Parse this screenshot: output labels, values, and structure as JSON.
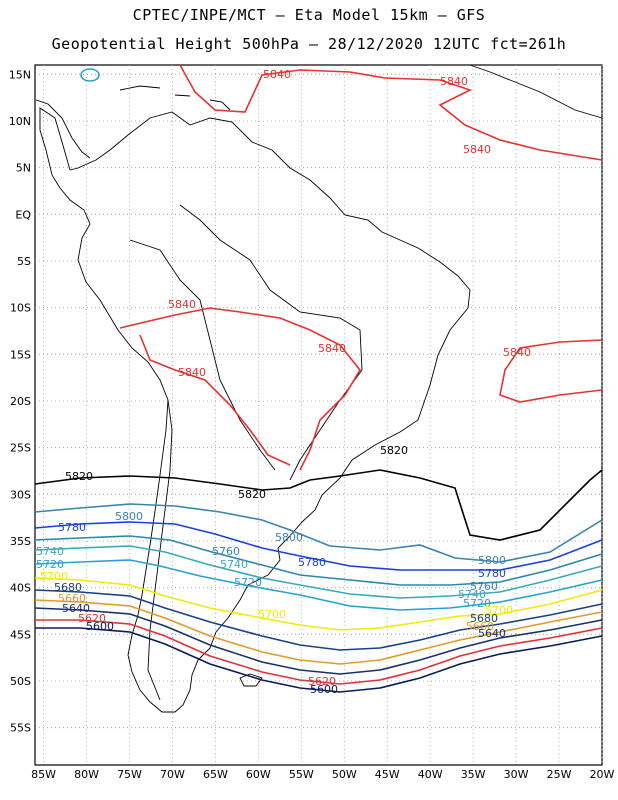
{
  "header": {
    "line1": "CPTEC/INPE/MCT –  Eta Model 15km – GFS",
    "line2": "Geopotential Height 500hPa – 28/12/2020 12UTC fct=261h"
  },
  "axes": {
    "lat_labels": [
      "15N",
      "10N",
      "5N",
      "EQ",
      "5S",
      "10S",
      "15S",
      "20S",
      "25S",
      "30S",
      "35S",
      "40S",
      "45S",
      "50S",
      "55S"
    ],
    "lat_values": [
      15,
      10,
      5,
      0,
      -5,
      -10,
      -15,
      -20,
      -25,
      -30,
      -35,
      -40,
      -45,
      -50,
      -55
    ],
    "lon_labels": [
      "85W",
      "80W",
      "75W",
      "70W",
      "65W",
      "60W",
      "55W",
      "50W",
      "45W",
      "40W",
      "35W",
      "30W",
      "25W",
      "20W"
    ],
    "lon_values": [
      -85,
      -80,
      -75,
      -70,
      -65,
      -60,
      -55,
      -50,
      -45,
      -40,
      -35,
      -30,
      -25,
      -20
    ],
    "lon_range": [
      -86,
      -20
    ],
    "lat_range": [
      -59,
      16
    ],
    "grid": "dotted"
  },
  "colors": {
    "c5600": "#0a1a5c",
    "c5620": "#e0303a",
    "c5640": "#17306e",
    "c5660": "#e09a2a",
    "c5680": "#1a3f8a",
    "c5700": "#f2ea00",
    "c5720": "#2a9fd4",
    "c5740": "#3aa8b8",
    "c5760": "#2a86b0",
    "c5780": "#1a3fe0",
    "c5800": "#3a82b0",
    "c5820": "#000000",
    "c5840": "#e83030",
    "coast": "#000000",
    "grid": "#999999"
  },
  "contour_labels": {
    "v5840a": "5840",
    "v5840b": "5840",
    "v5840c": "5840",
    "v5840d": "5840",
    "v5840e": "5840",
    "v5840f": "5840",
    "v5840g": "5840",
    "v5820a": "5820",
    "v5820b": "5820",
    "v5820c": "5820",
    "v5800a": "5800",
    "v5800b": "5800",
    "v5800c": "5800",
    "v5780a": "5780",
    "v5780b": "5780",
    "v5780c": "5780",
    "v5760a": "5760",
    "v5760b": "5760",
    "v5740a": "5740",
    "v5740b": "5740",
    "v5740c": "5740",
    "v5720a": "5720",
    "v5720b": "5720",
    "v5720c": "5720",
    "v5700a": "5700",
    "v5700b": "5700",
    "v5700c": "5700",
    "v5680a": "5680",
    "v5680b": "5680",
    "v5660a": "5660",
    "v5660b": "5660",
    "v5640a": "5640",
    "v5640b": "5640",
    "v5620a": "5620",
    "v5620b": "5620",
    "v5600a": "5600",
    "v5600b": "5600"
  }
}
